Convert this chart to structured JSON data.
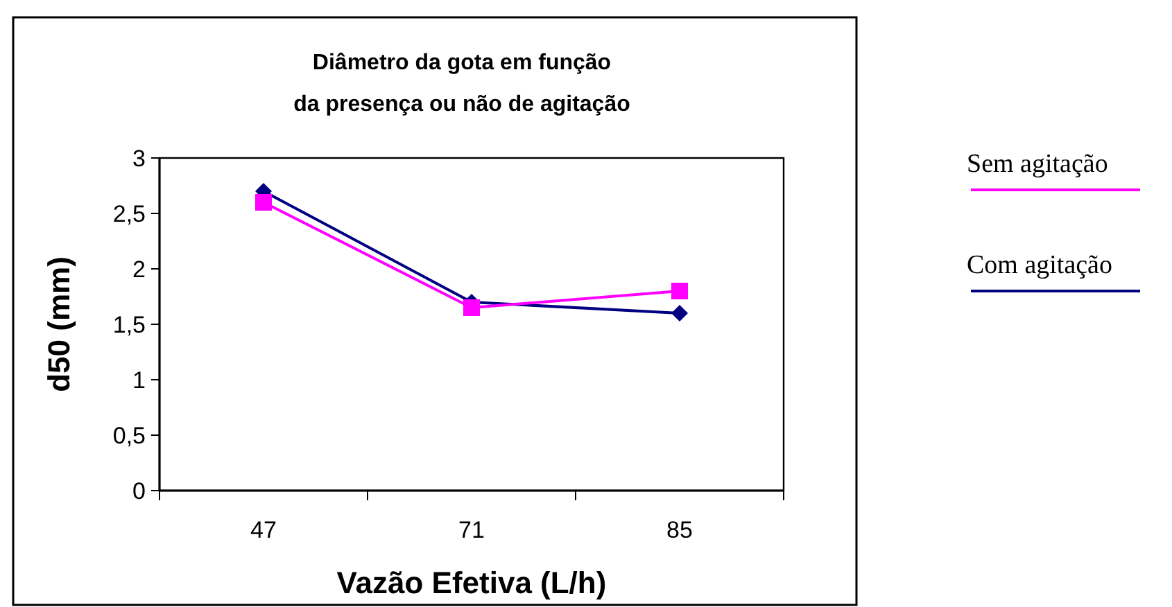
{
  "chart_data": {
    "type": "line",
    "title": "Diâmetro da gota em função\nda presença ou não de agitação",
    "xlabel": "Vazão Efetiva (L/h)",
    "ylabel": "d50 (mm)",
    "categories": [
      "47",
      "71",
      "85"
    ],
    "series": [
      {
        "name": "Sem agitação",
        "color": "#ff00ff",
        "values": [
          2.6,
          1.65,
          1.8
        ],
        "marker": "square"
      },
      {
        "name": "Com agitação",
        "color": "#000080",
        "values": [
          2.7,
          1.7,
          1.6
        ],
        "marker": "diamond"
      }
    ],
    "ylim": [
      0,
      3
    ],
    "yticks": [
      0,
      {
        "value": 0.5,
        "label": "0,5"
      },
      1,
      {
        "value": 1.5,
        "label": "1,5"
      },
      2,
      {
        "value": 2.5,
        "label": "2,5"
      },
      3
    ],
    "grid": false,
    "legend": "right",
    "line_style": "solid"
  }
}
